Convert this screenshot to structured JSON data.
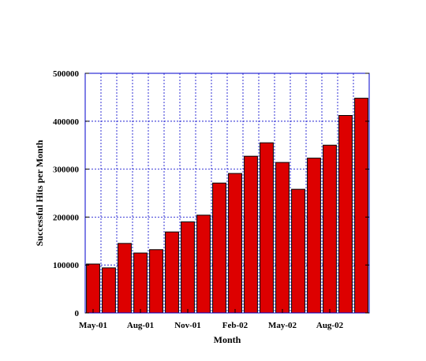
{
  "chart_data": {
    "type": "bar",
    "title": "",
    "xlabel": "Month",
    "ylabel": "Successful Hits per Month",
    "categories": [
      "May-01",
      "Jun-01",
      "Jul-01",
      "Aug-01",
      "Sep-01",
      "Oct-01",
      "Nov-01",
      "Dec-01",
      "Jan-02",
      "Feb-02",
      "Mar-02",
      "Apr-02",
      "May-02",
      "Jun-02",
      "Jul-02",
      "Aug-02",
      "Sep-02",
      "Oct-02"
    ],
    "values": [
      102000,
      94000,
      145000,
      125000,
      132000,
      169000,
      190000,
      204000,
      271000,
      291000,
      327000,
      355000,
      314000,
      258000,
      323000,
      350000,
      412000,
      448000
    ],
    "ylim": [
      0,
      500000
    ],
    "yticks": [
      0,
      100000,
      200000,
      300000,
      400000,
      500000
    ],
    "xtick_labels": [
      {
        "index": 0,
        "label": "May-01"
      },
      {
        "index": 3,
        "label": "Aug-01"
      },
      {
        "index": 6,
        "label": "Nov-01"
      },
      {
        "index": 9,
        "label": "Feb-02"
      },
      {
        "index": 12,
        "label": "May-02"
      },
      {
        "index": 15,
        "label": "Aug-02"
      }
    ],
    "grid": true,
    "bar_color": "#dd0000",
    "bar_edge_color": "#000000",
    "frame_color": "#0000cc",
    "grid_color": "#0000cc"
  }
}
